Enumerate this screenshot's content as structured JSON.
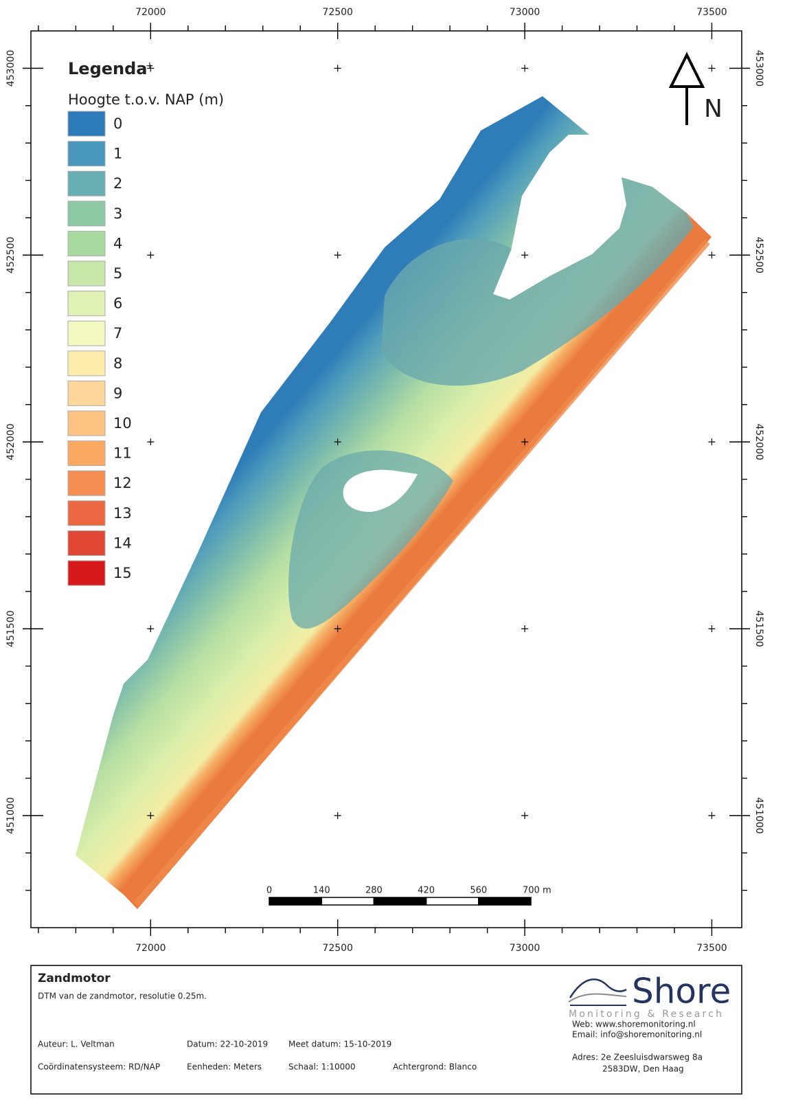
{
  "map": {
    "xlim": [
      71680,
      73580
    ],
    "ylim": [
      450700,
      453100
    ],
    "xticks": [
      72000,
      72500,
      73000,
      73500
    ],
    "yticks": [
      451000,
      451500,
      452000,
      452500,
      453000
    ],
    "x_minor_ticks": [
      71700,
      71800,
      71900,
      72100,
      72200,
      72300,
      72400,
      72600,
      72700,
      72800,
      72900,
      73100,
      73200,
      73300,
      73400
    ],
    "y_minor_ticks": [
      450800,
      450900,
      451100,
      451200,
      451300,
      451400,
      451600,
      451700,
      451800,
      451900,
      452100,
      452200,
      452300,
      452400,
      452600,
      452700,
      452800,
      452900
    ]
  },
  "legend": {
    "title": "Legenda",
    "expand_icon": "+",
    "subtitle": "Hoogte t.o.v. NAP (m)",
    "items": [
      {
        "value": 0,
        "color": "#2b7bb9"
      },
      {
        "value": 1,
        "color": "#4a98be"
      },
      {
        "value": 2,
        "color": "#69aeb3"
      },
      {
        "value": 3,
        "color": "#8ec9a6"
      },
      {
        "value": 4,
        "color": "#a9dba0"
      },
      {
        "value": 5,
        "color": "#c7e8a8"
      },
      {
        "value": 6,
        "color": "#dff2b4"
      },
      {
        "value": 7,
        "color": "#f3f9c0"
      },
      {
        "value": 8,
        "color": "#fdedac"
      },
      {
        "value": 9,
        "color": "#fdd89a"
      },
      {
        "value": 10,
        "color": "#fdc383"
      },
      {
        "value": 11,
        "color": "#fba962"
      },
      {
        "value": 12,
        "color": "#f68d52"
      },
      {
        "value": 13,
        "color": "#ec6843"
      },
      {
        "value": 14,
        "color": "#e04735"
      },
      {
        "value": 15,
        "color": "#d7191c"
      }
    ]
  },
  "north_arrow": {
    "label": "N"
  },
  "scale_bar": {
    "ticks": [
      0,
      140,
      280,
      420,
      560,
      {
        "value": 700,
        "label": "700 m"
      }
    ]
  },
  "info": {
    "title": "Zandmotor",
    "description": "DTM van de zandmotor, resolutie 0.25m.",
    "author": "Auteur: L. Veltman",
    "date": "Datum: 22-10-2019",
    "survey_date": "Meet datum: 15-10-2019",
    "crs": "Coördinatensysteem: RD/NAP",
    "units": "Eenheden: Meters",
    "scale": "Schaal: 1:10000",
    "background": "Achtergrond: Blanco"
  },
  "logo": {
    "name": "Shore",
    "tagline": "Monitoring & Research",
    "web": "Web: www.shoremonitoring.nl",
    "email": "Email: info@shoremonitoring.nl",
    "address_line1": "Adres: 2e Zeesluisdwarsweg 8a",
    "address_line2": "2583DW, Den Haag"
  }
}
